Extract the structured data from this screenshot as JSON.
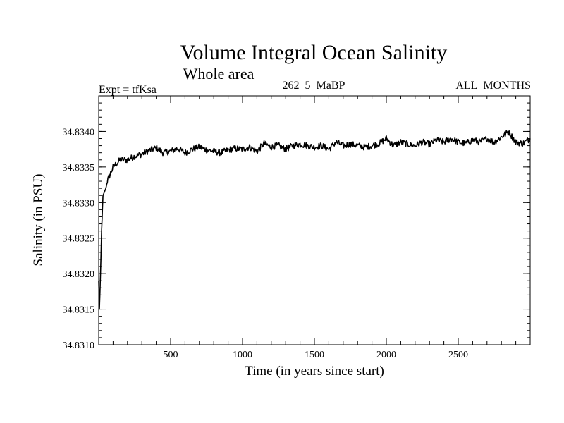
{
  "chart_data": {
    "type": "line",
    "title": "Volume Integral Ocean Salinity",
    "subtitle": "Whole area",
    "annotations": {
      "experiment": "Expt = tfKsa",
      "period": "262_5_MaBP",
      "months": "ALL_MONTHS"
    },
    "xlabel": "Time (in years since start)",
    "ylabel": "Salinity (in PSU)",
    "xlim": [
      0,
      3000
    ],
    "ylim": [
      34.831,
      34.8345
    ],
    "x_ticks": [
      500,
      1000,
      1500,
      2000,
      2500
    ],
    "x_tick_labels": [
      "500",
      "1000",
      "1500",
      "2000",
      "2500"
    ],
    "y_ticks": [
      34.831,
      34.8315,
      34.832,
      34.8325,
      34.833,
      34.8335,
      34.834
    ],
    "y_tick_labels": [
      "34.8310",
      "34.8315",
      "34.8320",
      "34.8325",
      "34.8330",
      "34.8335",
      "34.8340"
    ],
    "grid": false,
    "series": [
      {
        "name": "Salinity",
        "color": "#000000",
        "x": [
          0,
          5,
          10,
          15,
          20,
          30,
          40,
          50,
          60,
          80,
          100,
          125,
          150,
          175,
          200,
          250,
          300,
          350,
          400,
          450,
          500,
          550,
          600,
          650,
          700,
          750,
          800,
          850,
          900,
          950,
          1000,
          1050,
          1100,
          1150,
          1200,
          1250,
          1300,
          1350,
          1400,
          1450,
          1500,
          1550,
          1600,
          1650,
          1700,
          1750,
          1800,
          1850,
          1900,
          1950,
          2000,
          2050,
          2100,
          2150,
          2200,
          2250,
          2300,
          2350,
          2400,
          2450,
          2500,
          2550,
          2600,
          2650,
          2700,
          2750,
          2800,
          2850,
          2900,
          2950,
          3000
        ],
        "values": [
          34.8319,
          34.8315,
          34.8318,
          34.8322,
          34.8326,
          34.8331,
          34.83315,
          34.8332,
          34.8333,
          34.8334,
          34.8335,
          34.83355,
          34.8336,
          34.8336,
          34.8336,
          34.83365,
          34.83368,
          34.83373,
          34.83377,
          34.8337,
          34.83372,
          34.83376,
          34.8337,
          34.83375,
          34.83378,
          34.83374,
          34.83372,
          34.8337,
          34.83374,
          34.83376,
          34.83375,
          34.83378,
          34.83372,
          34.83383,
          34.83378,
          34.8338,
          34.83375,
          34.8338,
          34.83382,
          34.8338,
          34.83378,
          34.8338,
          34.83375,
          34.83385,
          34.8338,
          34.83382,
          34.8338,
          34.83378,
          34.8338,
          34.83383,
          34.8339,
          34.8338,
          34.83385,
          34.83382,
          34.8338,
          34.83385,
          34.83382,
          34.83388,
          34.83385,
          34.8339,
          34.83385,
          34.83383,
          34.83388,
          34.83385,
          34.8339,
          34.83385,
          34.83392,
          34.834,
          34.83385,
          34.83383,
          34.8339
        ]
      }
    ]
  }
}
